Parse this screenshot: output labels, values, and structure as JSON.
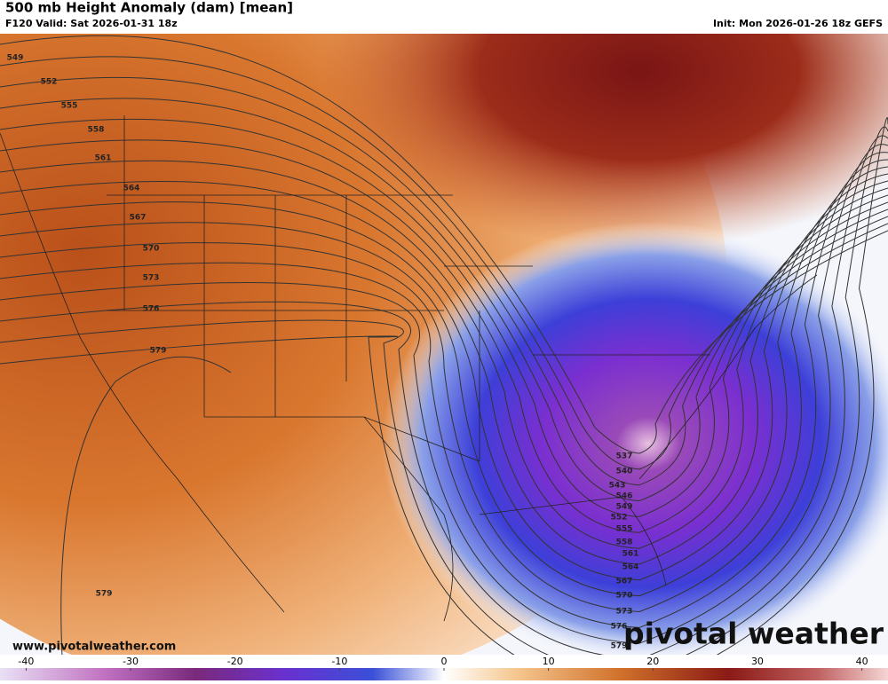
{
  "header": {
    "title": "500 mb Height Anomaly (dam) [mean]",
    "valid": "F120 Valid: Sat 2026-01-31 18z",
    "init": "Init: Mon 2026-01-26 18z GEFS"
  },
  "map": {
    "west_contour_labels": [
      "549",
      "552",
      "555",
      "558",
      "561",
      "564",
      "567",
      "570",
      "573",
      "576",
      "579"
    ],
    "southeast_contour_labels": [
      "537",
      "540",
      "543",
      "546",
      "549",
      "552",
      "555",
      "558",
      "561",
      "564",
      "567",
      "570",
      "573",
      "576",
      "579"
    ],
    "pacific_contour_label": "579",
    "watermark": "www.pivotalweather.com",
    "logo": "pivotal weather"
  },
  "colorbar": {
    "lim": [
      -42.5,
      42.5
    ],
    "ticks": [
      -40,
      -30,
      -20,
      -10,
      0,
      10,
      20,
      30,
      40
    ]
  }
}
